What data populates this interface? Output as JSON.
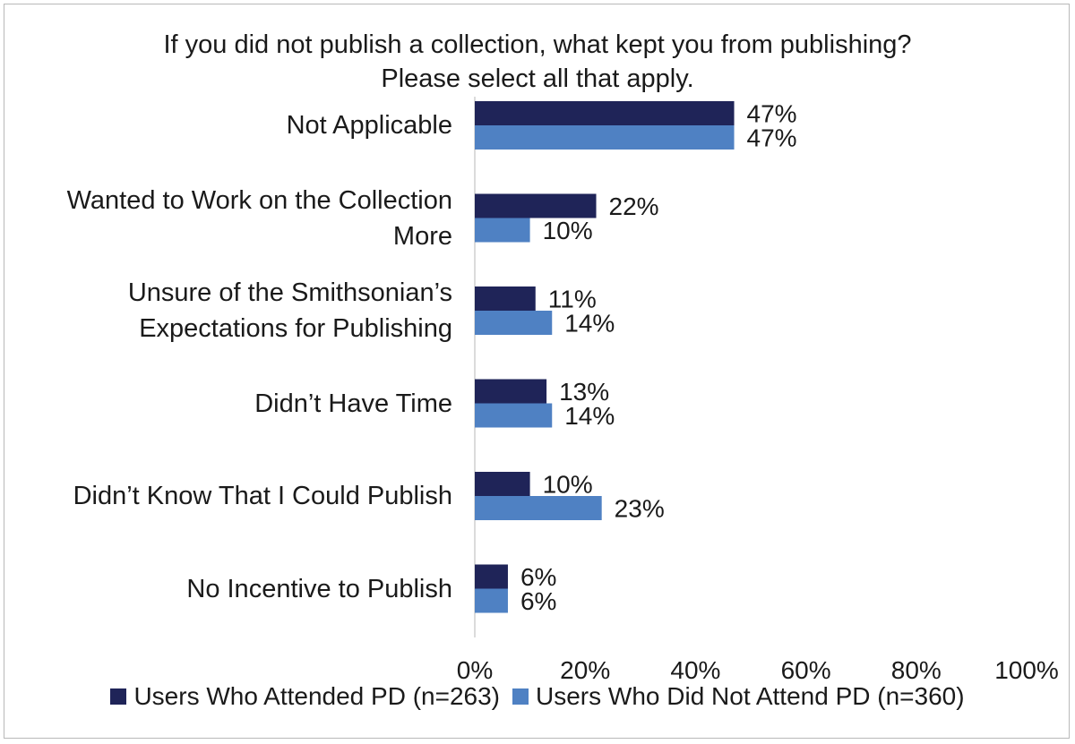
{
  "chart_data": {
    "type": "bar",
    "orientation": "horizontal",
    "title": [
      "If you did not publish a collection, what kept you from publishing?",
      "Please select all that apply."
    ],
    "categories": [
      [
        "Not Applicable"
      ],
      [
        "Wanted to Work on the Collection",
        "More"
      ],
      [
        "Unsure of the Smithsonian’s",
        "Expectations for Publishing"
      ],
      [
        "Didn’t Have Time"
      ],
      [
        "Didn’t Know That I Could Publish"
      ],
      [
        "No Incentive to Publish"
      ]
    ],
    "series": [
      {
        "name": "Users Who Attended PD (n=263)",
        "color": "#1f2458",
        "values": [
          47,
          22,
          11,
          13,
          10,
          6
        ]
      },
      {
        "name": "Users Who Did Not Attend PD (n=360)",
        "color": "#4f81c3",
        "values": [
          47,
          10,
          14,
          14,
          23,
          6
        ]
      }
    ],
    "xlim": [
      0,
      100
    ],
    "xticks": [
      "0%",
      "20%",
      "40%",
      "60%",
      "80%",
      "100%"
    ],
    "value_suffix": "%",
    "legend": "bottom",
    "grid": false
  }
}
